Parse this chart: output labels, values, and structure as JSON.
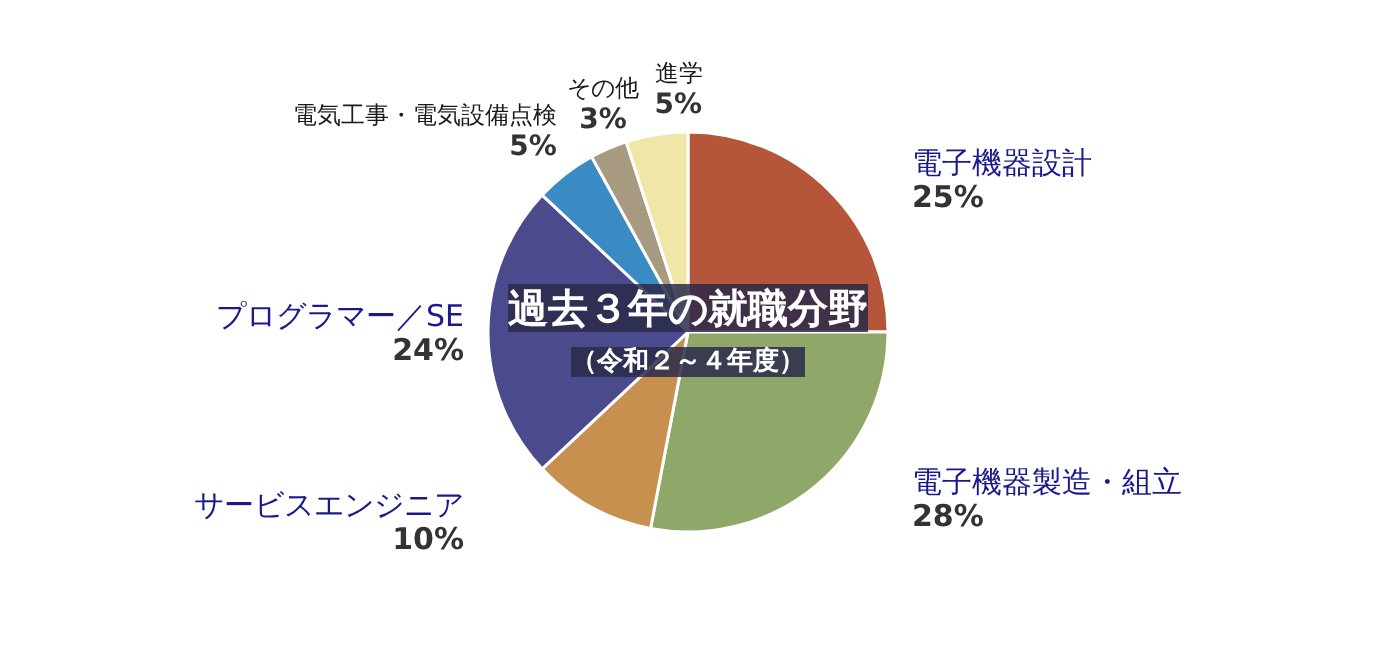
{
  "chart_data": {
    "type": "pie",
    "title": "過去３年の就職分野",
    "subtitle": "（令和２～４年度）",
    "categories": [
      "電子機器設計",
      "電子機器製造・組立",
      "サービスエンジニア",
      "プログラマー／SE",
      "電気工事・電気設備点検",
      "その他",
      "進学"
    ],
    "values": [
      25,
      28,
      10,
      24,
      5,
      3,
      5
    ],
    "value_labels": [
      "25%",
      "28%",
      "10%",
      "24%",
      "5%",
      "3%",
      "5%"
    ],
    "colors": [
      "#b5553a",
      "#8fa86a",
      "#c8904e",
      "#4a4a8c",
      "#3a8ac4",
      "#a89a80",
      "#f0e6a8"
    ]
  }
}
